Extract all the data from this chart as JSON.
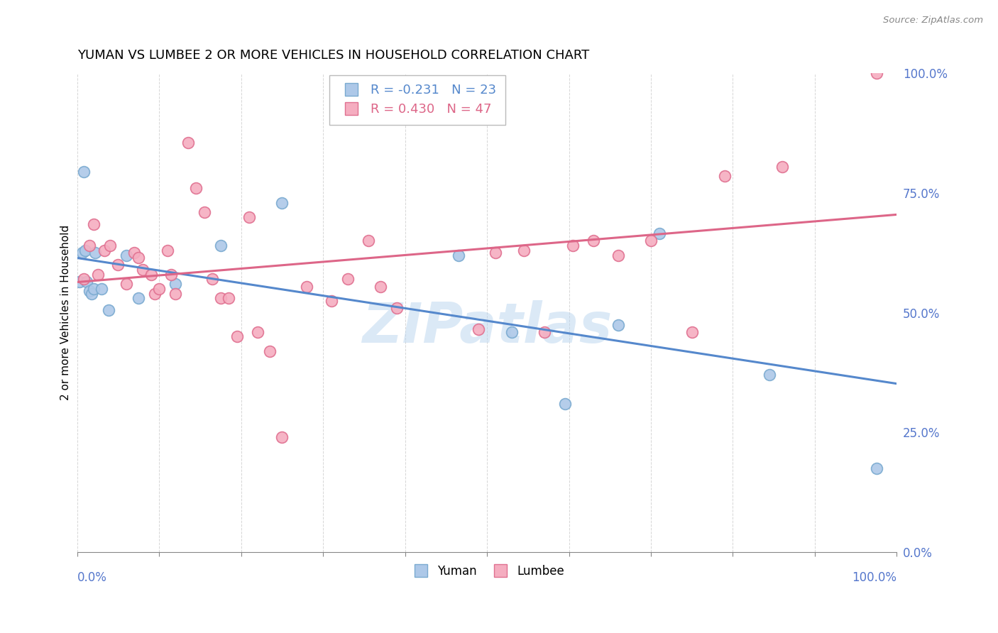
{
  "title": "YUMAN VS LUMBEE 2 OR MORE VEHICLES IN HOUSEHOLD CORRELATION CHART",
  "source": "Source: ZipAtlas.com",
  "ylabel": "2 or more Vehicles in Household",
  "yuman_R": -0.231,
  "yuman_N": 23,
  "lumbee_R": 0.43,
  "lumbee_N": 47,
  "xlim": [
    0,
    1
  ],
  "ylim": [
    0,
    1
  ],
  "yticks": [
    0.0,
    0.25,
    0.5,
    0.75,
    1.0
  ],
  "yuman_color": "#adc8e8",
  "lumbee_color": "#f5adc0",
  "yuman_edge_color": "#7aaad0",
  "lumbee_edge_color": "#e07090",
  "yuman_line_color": "#5588cc",
  "lumbee_line_color": "#dd6688",
  "tick_label_color": "#5577cc",
  "watermark_color": "#b8d4ee",
  "yuman_x": [
    0.003,
    0.006,
    0.008,
    0.01,
    0.012,
    0.015,
    0.018,
    0.02,
    0.022,
    0.03,
    0.038,
    0.06,
    0.075,
    0.12,
    0.175,
    0.25,
    0.465,
    0.53,
    0.595,
    0.66,
    0.71,
    0.845,
    0.975
  ],
  "yuman_y": [
    0.565,
    0.625,
    0.795,
    0.63,
    0.565,
    0.545,
    0.54,
    0.55,
    0.625,
    0.55,
    0.505,
    0.62,
    0.53,
    0.56,
    0.64,
    0.73,
    0.62,
    0.46,
    0.31,
    0.475,
    0.665,
    0.37,
    0.175
  ],
  "lumbee_x": [
    0.008,
    0.015,
    0.02,
    0.025,
    0.033,
    0.04,
    0.05,
    0.06,
    0.07,
    0.075,
    0.08,
    0.09,
    0.095,
    0.1,
    0.11,
    0.115,
    0.12,
    0.135,
    0.145,
    0.155,
    0.165,
    0.175,
    0.185,
    0.195,
    0.21,
    0.22,
    0.235,
    0.25,
    0.28,
    0.31,
    0.33,
    0.355,
    0.37,
    0.39,
    0.42,
    0.49,
    0.51,
    0.545,
    0.57,
    0.605,
    0.63,
    0.66,
    0.7,
    0.75,
    0.79,
    0.86,
    0.975
  ],
  "lumbee_y": [
    0.57,
    0.64,
    0.685,
    0.58,
    0.63,
    0.64,
    0.6,
    0.56,
    0.625,
    0.615,
    0.59,
    0.58,
    0.54,
    0.55,
    0.63,
    0.58,
    0.54,
    0.855,
    0.76,
    0.71,
    0.57,
    0.53,
    0.53,
    0.45,
    0.7,
    0.46,
    0.42,
    0.24,
    0.555,
    0.525,
    0.57,
    0.65,
    0.555,
    0.51,
    0.905,
    0.465,
    0.625,
    0.63,
    0.46,
    0.64,
    0.65,
    0.62,
    0.65,
    0.46,
    0.785,
    0.805,
    1.0
  ]
}
